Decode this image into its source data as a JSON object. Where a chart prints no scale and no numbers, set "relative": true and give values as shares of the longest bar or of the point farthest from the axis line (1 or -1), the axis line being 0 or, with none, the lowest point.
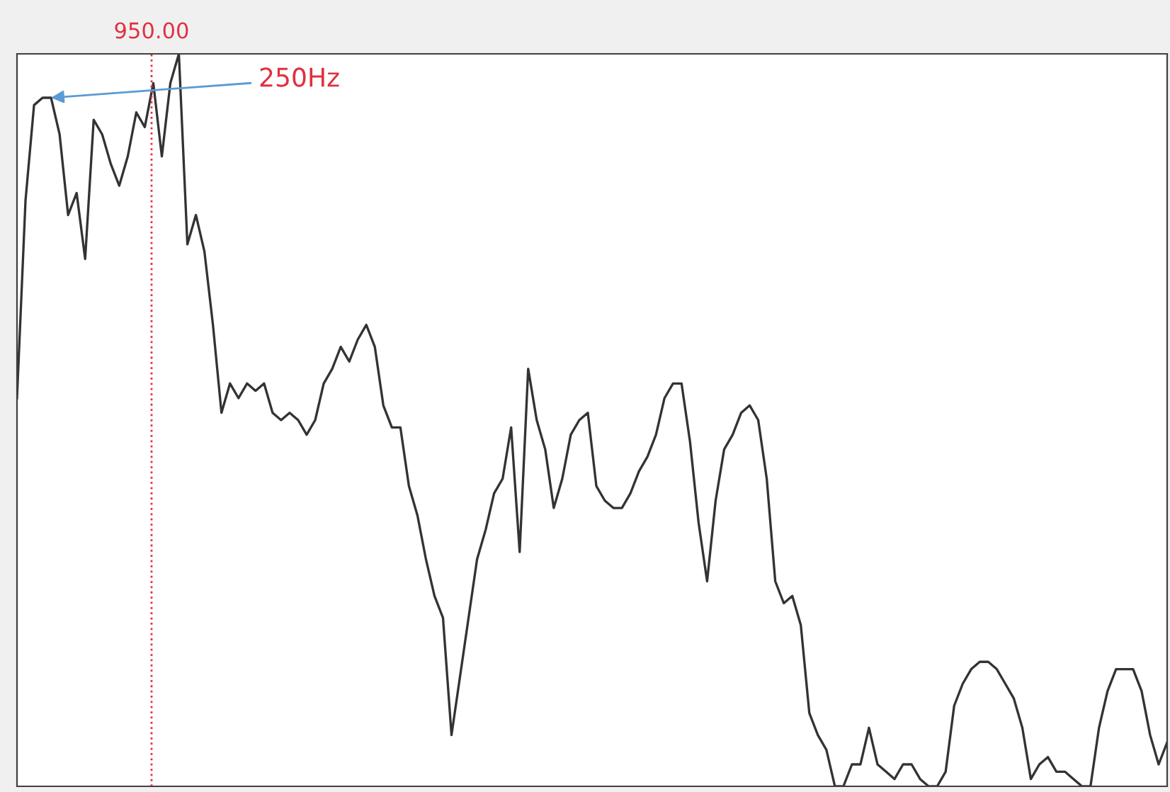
{
  "chart_data": {
    "type": "line",
    "relative": true,
    "tick_labels": false,
    "marker": "none",
    "line_style": "solid",
    "categories": [
      null,
      null,
      null,
      null,
      null,
      null,
      null,
      null,
      null,
      null,
      null,
      null,
      null,
      null,
      null,
      null,
      null,
      null,
      null,
      null,
      null,
      null,
      null,
      null,
      null,
      null,
      null,
      null,
      null,
      null,
      null,
      null,
      null,
      null,
      null,
      null,
      null,
      null,
      null,
      null,
      null,
      null,
      null,
      null,
      null,
      null,
      null,
      null,
      null,
      null,
      null,
      null,
      null,
      null,
      null,
      null,
      null,
      null,
      null,
      null,
      null,
      null,
      null,
      null,
      null,
      null,
      null,
      null,
      null,
      null,
      null,
      null,
      null,
      null,
      null,
      null,
      null,
      null,
      null,
      null,
      null,
      null,
      null,
      null,
      null,
      null,
      null,
      null,
      null,
      null,
      null,
      null,
      null,
      null,
      null,
      null,
      null,
      null,
      null,
      null,
      null,
      null,
      null,
      null,
      null,
      null,
      null,
      null,
      null,
      null,
      null,
      null,
      null,
      null,
      null,
      null,
      null,
      null,
      null,
      null,
      null,
      null,
      null,
      null,
      null,
      null,
      null,
      null,
      null,
      null,
      null,
      null,
      null,
      null,
      null,
      null
    ],
    "series": [
      {
        "color": "#333333",
        "values": [
          0.53,
          0.8,
          0.93,
          0.94,
          0.94,
          0.89,
          0.78,
          0.81,
          0.72,
          0.91,
          0.89,
          0.85,
          0.82,
          0.86,
          0.92,
          0.9,
          0.96,
          0.86,
          0.96,
          1,
          0.74,
          0.78,
          0.73,
          0.63,
          0.51,
          0.55,
          0.53,
          0.55,
          0.54,
          0.55,
          0.51,
          0.5,
          0.51,
          0.5,
          0.48,
          0.5,
          0.55,
          0.57,
          0.6,
          0.58,
          0.61,
          0.63,
          0.6,
          0.52,
          0.49,
          0.49,
          0.41,
          0.37,
          0.31,
          0.26,
          0.23,
          0.07,
          0.15,
          0.23,
          0.31,
          0.35,
          0.4,
          0.42,
          0.49,
          0.32,
          0.57,
          0.5,
          0.46,
          0.38,
          0.42,
          0.48,
          0.5,
          0.51,
          0.41,
          0.39,
          0.38,
          0.38,
          0.4,
          0.43,
          0.45,
          0.48,
          0.53,
          0.55,
          0.55,
          0.47,
          0.36,
          0.28,
          0.39,
          0.46,
          0.48,
          0.51,
          0.52,
          0.5,
          0.42,
          0.28,
          0.25,
          0.26,
          0.22,
          0.1,
          0.07,
          0.05,
          0,
          0,
          0.03,
          0.03,
          0.08,
          0.03,
          0.02,
          0.01,
          0.03,
          0.03,
          0.01,
          0,
          0,
          0.02,
          0.11,
          0.14,
          0.16,
          0.17,
          0.17,
          0.16,
          0.14,
          0.12,
          0.08,
          0.01,
          0.03,
          0.04,
          0.02,
          0.02,
          0.01,
          0,
          0,
          0.08,
          0.13,
          0.16,
          0.16,
          0.16,
          0.13,
          0.07,
          0.03,
          0.06
        ]
      }
    ],
    "annotations": [
      "950.00",
      "250Hz"
    ]
  }
}
